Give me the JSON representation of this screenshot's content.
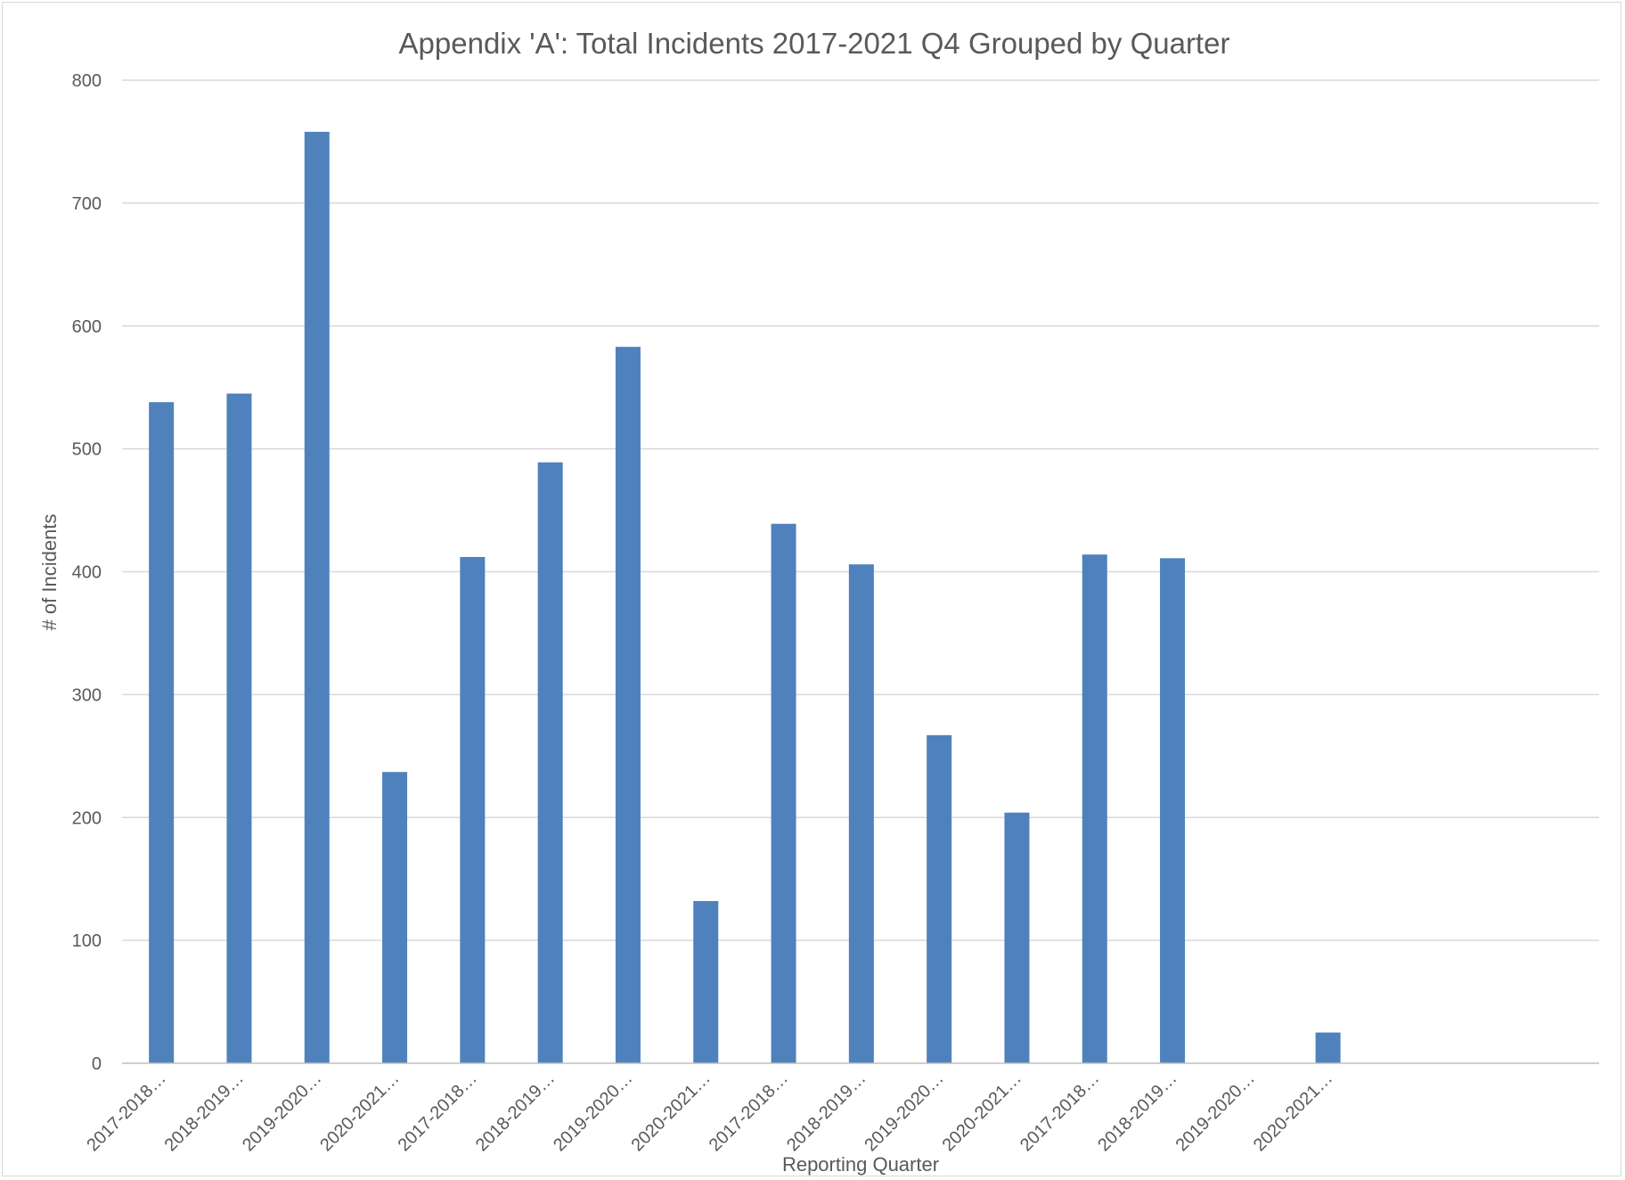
{
  "chart_data": {
    "type": "bar",
    "title": "Appendix 'A': Total Incidents 2017-2021 Q4 Grouped by Quarter",
    "xlabel": "Reporting Quarter",
    "ylabel": "# of Incidents",
    "ylim": [
      0,
      800
    ],
    "yticks": [
      "0",
      "100",
      "200",
      "300",
      "400",
      "500",
      "600",
      "700",
      "800"
    ],
    "grid": true,
    "legend": "none",
    "color": "#4f81bd",
    "categories": [
      "2017-2018…",
      "2018-2019…",
      "2019-2020…",
      "2020-2021…",
      "2017-2018…",
      "2018-2019…",
      "2019-2020…",
      "2020-2021…",
      "2017-2018…",
      "2018-2019…",
      "2019-2020…",
      "2020-2021…",
      "2017-2018…",
      "2018-2019…",
      "2019-2020…",
      "2020-2021…"
    ],
    "values": [
      538,
      545,
      758,
      237,
      412,
      489,
      583,
      132,
      439,
      406,
      267,
      204,
      414,
      411,
      0,
      25
    ]
  }
}
